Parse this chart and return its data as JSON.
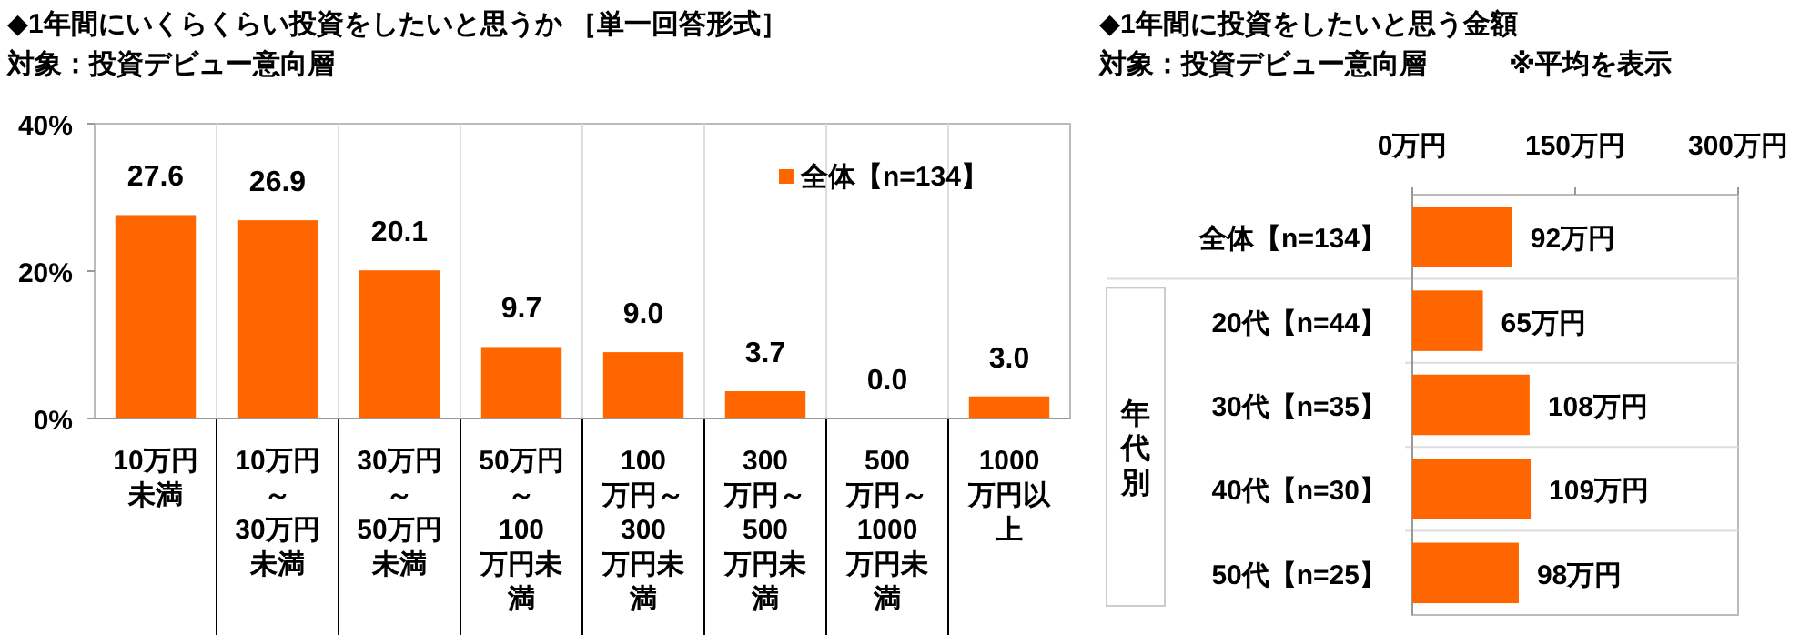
{
  "chart_data": [
    {
      "type": "bar",
      "title": "◆1年間にいくらくらい投資をしたいと思うか ［単一回答形式］",
      "subtitle": "対象：投資デビュー意向層",
      "categories": [
        "10万円未満",
        "10万円～30万円未満",
        "30万円～50万円未満",
        "50万円～100万円未満",
        "100万円～300万円未満",
        "300万円～500万円未満",
        "500万円～1000万円未満",
        "1000万円以上"
      ],
      "series": [
        {
          "name": "全体【n=134】",
          "color": "#ff6600",
          "values": [
            27.6,
            26.9,
            20.1,
            9.7,
            9.0,
            3.7,
            0.0,
            3.0
          ]
        }
      ],
      "ylim": [
        0,
        40
      ],
      "yticks": [
        {
          "value": 0,
          "label": "0%"
        },
        {
          "value": 20,
          "label": "20%"
        },
        {
          "value": 40,
          "label": "40%"
        }
      ],
      "value_labels": [
        "27.6",
        "26.9",
        "20.1",
        "9.7",
        "9.0",
        "3.7",
        "0.0",
        "3.0"
      ],
      "legend": "top right",
      "grid": false
    },
    {
      "type": "bar",
      "orientation": "horizontal",
      "title": "◆1年間に投資をしたいと思う金額",
      "subtitle": "対象：投資デビュー意向層　　　※平均を表示",
      "categories": [
        "全体【n=134】",
        "20代【n=44】",
        "30代【n=35】",
        "40代【n=30】",
        "50代【n=25】"
      ],
      "values": [
        92,
        65,
        108,
        109,
        98
      ],
      "color": "#ff6600",
      "value_labels": [
        "92万円",
        "65万円",
        "108万円",
        "109万円",
        "98万円"
      ],
      "xlim": [
        0,
        300
      ],
      "xticks": [
        {
          "value": 0,
          "label": "0万円"
        },
        {
          "value": 150,
          "label": "150万円"
        },
        {
          "value": 300,
          "label": "300万円"
        }
      ],
      "annotations": [
        "年代別"
      ],
      "grid": false
    }
  ]
}
